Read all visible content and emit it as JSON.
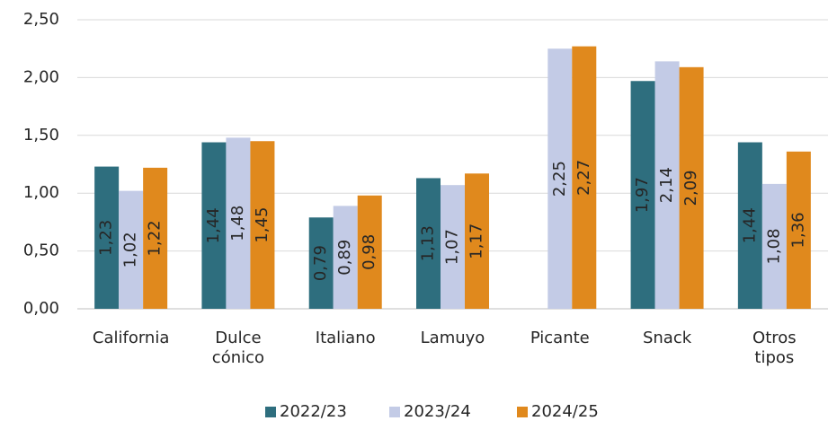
{
  "chart_data": {
    "type": "bar",
    "categories": [
      "California",
      "Dulce\ncónico",
      "Italiano",
      "Lamuyo",
      "Picante",
      "Snack",
      "Otros\ntipos"
    ],
    "series": [
      {
        "name": "2022/23",
        "color": "#2e6e7e",
        "values": [
          1.23,
          1.44,
          0.79,
          1.13,
          null,
          1.97,
          1.44
        ],
        "value_labels": [
          "1,23",
          "1,44",
          "0,79",
          "1,13",
          null,
          "1,97",
          "1,44"
        ]
      },
      {
        "name": "2023/24",
        "color": "#c3cbe6",
        "values": [
          1.02,
          1.48,
          0.89,
          1.07,
          2.25,
          2.14,
          1.08
        ],
        "value_labels": [
          "1,02",
          "1,48",
          "0,89",
          "1,07",
          "2,25",
          "2,14",
          "1,08"
        ]
      },
      {
        "name": "2024/25",
        "color": "#e0891d",
        "values": [
          1.22,
          1.45,
          0.98,
          1.17,
          2.27,
          2.09,
          1.36
        ],
        "value_labels": [
          "1,22",
          "1,45",
          "0,98",
          "1,17",
          "2,27",
          "2,09",
          "1,36"
        ]
      }
    ],
    "ylim": [
      0,
      2.5
    ],
    "yticks": [
      {
        "value": 0,
        "label": "0,00"
      },
      {
        "value": 0.5,
        "label": "0,50"
      },
      {
        "value": 1,
        "label": "1,00"
      },
      {
        "value": 1.5,
        "label": "1,50"
      },
      {
        "value": 2,
        "label": "2,00"
      },
      {
        "value": 2.5,
        "label": "2,50"
      }
    ],
    "grid": true,
    "legend": "bottom"
  }
}
